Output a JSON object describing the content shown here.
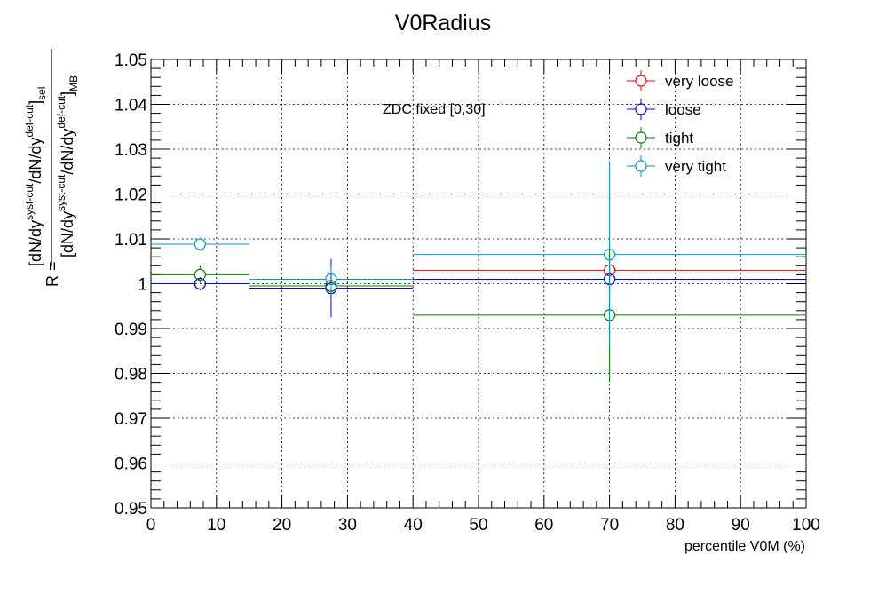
{
  "chart_data": {
    "type": "scatter",
    "title": "V0Radius",
    "xlabel": "percentile V0M (%)",
    "ylabel": {
      "prefix": "R = ",
      "numerator": {
        "t1": "[dN/dy",
        "s1": "syst-cut",
        "t2": "/dN/dy",
        "s2": "def-cut",
        "t3": "]",
        "s3": "sel"
      },
      "denominator": {
        "t1": "[dN/dy",
        "s1": "syst-cut",
        "t2": "/dN/dy",
        "s2": "def-cut",
        "t3": "]",
        "s3": "MB"
      }
    },
    "annotation": "ZDC fixed [0,30]",
    "xlim": [
      0,
      100
    ],
    "ylim": [
      0.95,
      1.05
    ],
    "grid": true,
    "legend_position": "top-right",
    "x_ticks": [
      "0",
      "10",
      "20",
      "30",
      "40",
      "50",
      "60",
      "70",
      "80",
      "90",
      "100"
    ],
    "y_ticks": [
      "0.95",
      "0.96",
      "0.97",
      "0.98",
      "0.99",
      "1",
      "1.01",
      "1.02",
      "1.03",
      "1.04",
      "1.05"
    ],
    "series": [
      {
        "name": "very loose",
        "color": "#ff0000",
        "points": [
          {
            "x": 7.5,
            "xlo": 0,
            "xhi": 15,
            "y": 1.0,
            "yerr": 0.001
          },
          {
            "x": 27.5,
            "xlo": 15,
            "xhi": 40,
            "y": 0.9995,
            "yerr": 0.0015
          },
          {
            "x": 70,
            "xlo": 40,
            "xhi": 100,
            "y": 1.003,
            "yerr": 0.002
          }
        ]
      },
      {
        "name": "loose",
        "color": "#0000ff",
        "points": [
          {
            "x": 7.5,
            "xlo": 0,
            "xhi": 15,
            "y": 1.0,
            "yerr": 0.0015
          },
          {
            "x": 27.5,
            "xlo": 15,
            "xhi": 40,
            "y": 0.999,
            "yerr": 0.0065
          },
          {
            "x": 70,
            "xlo": 40,
            "xhi": 100,
            "y": 1.001,
            "yerr": 0.0025
          }
        ]
      },
      {
        "name": "tight",
        "color": "#008000",
        "points": [
          {
            "x": 7.5,
            "xlo": 0,
            "xhi": 15,
            "y": 1.002,
            "yerr": 0.002
          },
          {
            "x": 27.5,
            "xlo": 15,
            "xhi": 40,
            "y": 0.9995,
            "yerr": 0.002
          },
          {
            "x": 70,
            "xlo": 40,
            "xhi": 100,
            "y": 0.993,
            "yerr": 0.015
          }
        ]
      },
      {
        "name": "very tight",
        "color": "#0099cc",
        "points": [
          {
            "x": 7.5,
            "xlo": 0,
            "xhi": 15,
            "y": 1.0088,
            "yerr": 0.0015
          },
          {
            "x": 27.5,
            "xlo": 15,
            "xhi": 40,
            "y": 1.001,
            "yerr": 0.003
          },
          {
            "x": 70,
            "xlo": 40,
            "xhi": 100,
            "y": 1.0065,
            "yerr": 0.0205
          }
        ]
      }
    ]
  }
}
